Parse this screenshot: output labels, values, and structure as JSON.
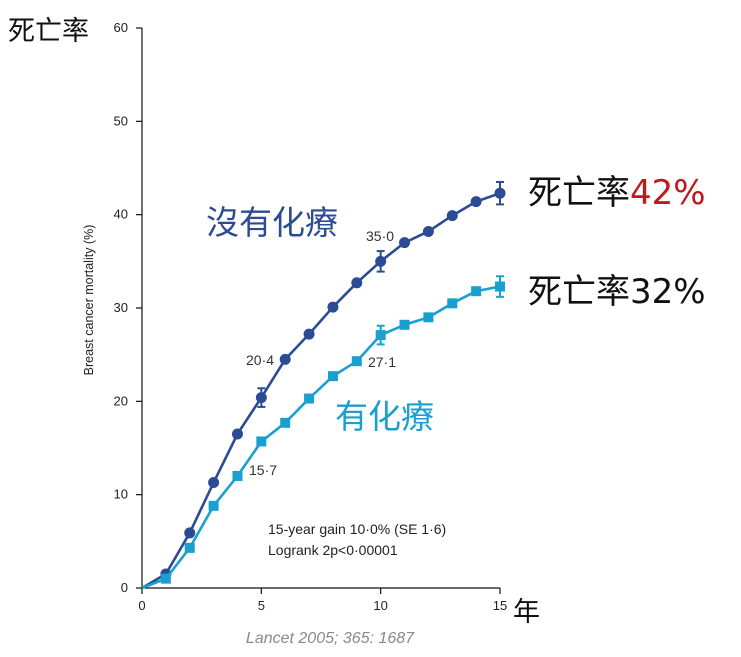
{
  "chart_data": {
    "type": "line",
    "y_unit_label": "死亡率",
    "ylabel": "Breast cancer mortality (%)",
    "x_unit_label": "年",
    "xlim": [
      0,
      15
    ],
    "ylim": [
      0,
      60
    ],
    "x_ticks": [
      0,
      5,
      10,
      15
    ],
    "y_ticks": [
      0,
      10,
      20,
      30,
      40,
      50,
      60
    ],
    "series": [
      {
        "name": "沒有化療",
        "color": "#2b4c94",
        "marker": "circle",
        "x": [
          0,
          1,
          2,
          3,
          4,
          5,
          6,
          7,
          8,
          9,
          10,
          11,
          12,
          13,
          14,
          15
        ],
        "y": [
          0,
          1.5,
          5.9,
          11.3,
          16.5,
          20.4,
          24.5,
          27.2,
          30.1,
          32.7,
          35.0,
          37.0,
          38.2,
          39.9,
          41.4,
          42.3
        ],
        "end_label": "死亡率",
        "end_value": "42%",
        "end_value_color": "#c0181e"
      },
      {
        "name": "有化療",
        "color": "#1aa0d0",
        "marker": "square",
        "x": [
          0,
          1,
          2,
          3,
          4,
          5,
          6,
          7,
          8,
          9,
          10,
          11,
          12,
          13,
          14,
          15
        ],
        "y": [
          0,
          1.0,
          4.3,
          8.8,
          12.0,
          15.7,
          17.7,
          20.3,
          22.7,
          24.3,
          27.1,
          28.2,
          29.0,
          30.5,
          31.8,
          32.3
        ],
        "end_label": "死亡率",
        "end_value": "32%",
        "end_value_color": "#111111"
      }
    ],
    "point_labels": [
      {
        "text": "35·0"
      },
      {
        "text": "20·4"
      },
      {
        "text": "27·1"
      },
      {
        "text": "15·7"
      }
    ],
    "annotations": {
      "gain": "15-year gain 10·0% (SE 1·6)",
      "logrank": "Logrank 2p<0·00001"
    }
  },
  "source": "Lancet 2005; 365: 1687"
}
